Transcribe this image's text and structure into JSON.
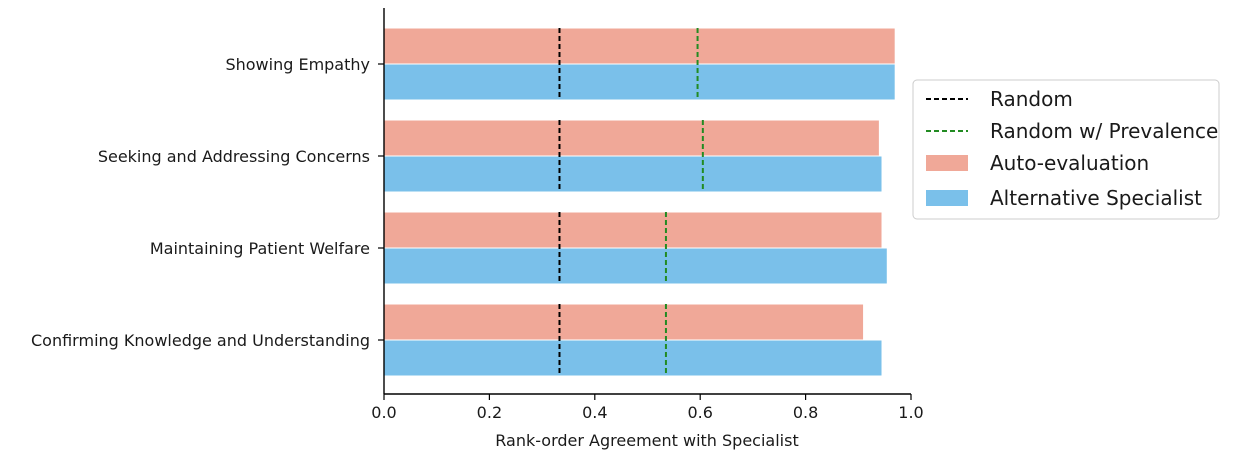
{
  "chart_data": {
    "type": "bar",
    "orientation": "horizontal",
    "categories": [
      "Showing Empathy",
      "Seeking and Addressing Concerns",
      "Maintaining Patient Welfare",
      "Confirming Knowledge and Understanding"
    ],
    "series": [
      {
        "name": "Auto-evaluation",
        "color": "#f0a898",
        "values": [
          0.97,
          0.94,
          0.945,
          0.91
        ]
      },
      {
        "name": "Alternative Specialist",
        "color": "#7ac0ea",
        "values": [
          0.97,
          0.945,
          0.955,
          0.945
        ]
      }
    ],
    "reference_lines": [
      {
        "name": "Random",
        "color": "#000000",
        "style": "dashed",
        "values": [
          0.333,
          0.333,
          0.333,
          0.333
        ]
      },
      {
        "name": "Random w/ Prevalence",
        "color": "#228b22",
        "style": "dashed",
        "values": [
          0.595,
          0.605,
          0.535,
          0.535
        ]
      }
    ],
    "xlabel": "Rank-order Agreement with Specialist",
    "ylabel": "",
    "xlim": [
      0.0,
      1.0
    ],
    "xticks": [
      "0.0",
      "0.2",
      "0.4",
      "0.6",
      "0.8",
      "1.0"
    ],
    "legend": {
      "position": "right",
      "entries": [
        "Random",
        "Random w/ Prevalence",
        "Auto-evaluation",
        "Alternative Specialist"
      ]
    },
    "grid": false
  }
}
